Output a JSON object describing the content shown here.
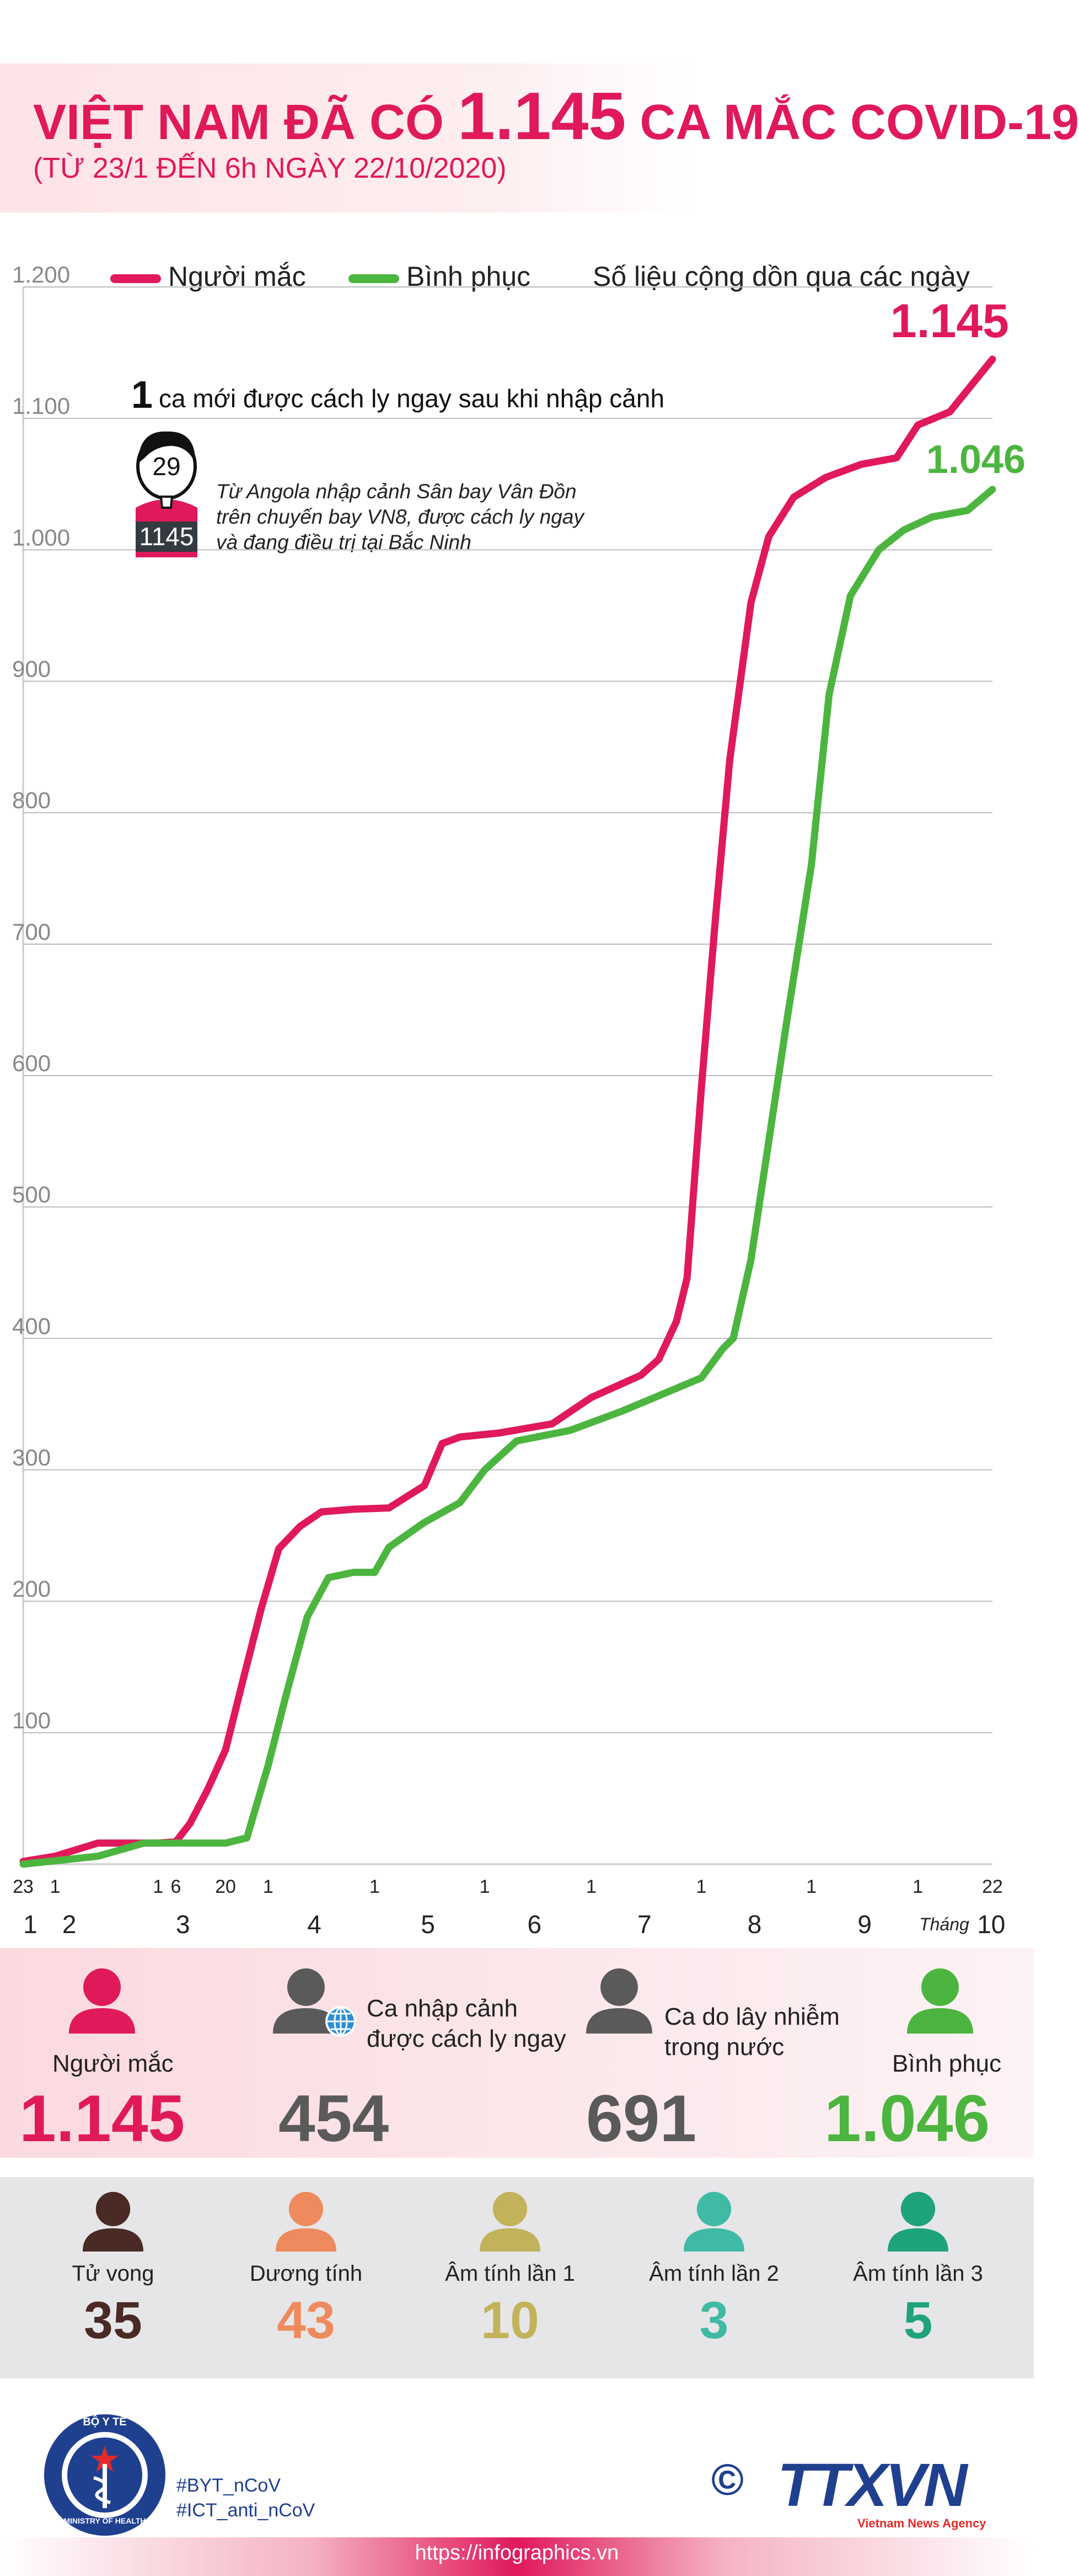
{
  "header": {
    "title_pre": "VIỆT NAM ĐÃ CÓ",
    "title_num": "1.145",
    "title_post": "CA MẮC COVID-19",
    "subtitle": "(TỪ 23/1 ĐẾN 6h NGÀY 22/10/2020)"
  },
  "legend": {
    "infected": "Người mắc",
    "recovered": "Bình phục",
    "note": "Số liệu cộng dồn qua các ngày"
  },
  "colors": {
    "infected": "#e0195b",
    "recovered": "#4cb53f",
    "grid": "#bbbbbb",
    "axis_text": "#888888",
    "dark": "#5a5a5a",
    "deceased": "#4a2a24",
    "positive": "#ef8a5e",
    "neg1": "#c2b25a",
    "neg2": "#3fbaa5",
    "neg3": "#1fa37a"
  },
  "annotation": {
    "count": "1",
    "headline": "ca mới được cách ly ngay sau khi nhập cảnh",
    "age": "29",
    "patient_id": "1145",
    "detail_1": "Từ Angola nhập cảnh Sân bay Vân Đồn",
    "detail_2": "trên chuyến bay VN8, được cách ly ngay",
    "detail_3": "và đang điều trị tại Bắc Ninh"
  },
  "chart_data": {
    "type": "line",
    "ylim": [
      0,
      1200
    ],
    "yticks": [
      "100",
      "200",
      "300",
      "400",
      "500",
      "600",
      "700",
      "800",
      "900",
      "1.000",
      "1.100",
      "1.200"
    ],
    "ytick_values": [
      100,
      200,
      300,
      400,
      500,
      600,
      700,
      800,
      900,
      1000,
      1100,
      1200
    ],
    "day_labels": [
      "23",
      "1",
      "1",
      "6",
      "20",
      "1",
      "1",
      "1",
      "1",
      "1",
      "1",
      "1",
      "22"
    ],
    "month_labels": [
      "1",
      "2",
      "3",
      "4",
      "5",
      "6",
      "7",
      "8",
      "9",
      "10"
    ],
    "month_prefix": "Tháng",
    "x_start": "2020-01-23",
    "x_end": "2020-10-22",
    "series": [
      {
        "name": "Người mắc",
        "end_label": "1.145",
        "points": [
          [
            "2020-01-23",
            2
          ],
          [
            "2020-02-01",
            6
          ],
          [
            "2020-02-13",
            16
          ],
          [
            "2020-03-01",
            16
          ],
          [
            "2020-03-06",
            17
          ],
          [
            "2020-03-10",
            31
          ],
          [
            "2020-03-15",
            57
          ],
          [
            "2020-03-20",
            87
          ],
          [
            "2020-03-25",
            141
          ],
          [
            "2020-03-30",
            194
          ],
          [
            "2020-04-04",
            240
          ],
          [
            "2020-04-10",
            257
          ],
          [
            "2020-04-16",
            268
          ],
          [
            "2020-04-25",
            270
          ],
          [
            "2020-05-05",
            271
          ],
          [
            "2020-05-15",
            288
          ],
          [
            "2020-05-20",
            320
          ],
          [
            "2020-05-25",
            325
          ],
          [
            "2020-06-05",
            328
          ],
          [
            "2020-06-20",
            335
          ],
          [
            "2020-07-01",
            355
          ],
          [
            "2020-07-15",
            372
          ],
          [
            "2020-07-20",
            384
          ],
          [
            "2020-07-25",
            413
          ],
          [
            "2020-07-28",
            446
          ],
          [
            "2020-08-01",
            590
          ],
          [
            "2020-08-05",
            720
          ],
          [
            "2020-08-09",
            840
          ],
          [
            "2020-08-15",
            960
          ],
          [
            "2020-08-20",
            1010
          ],
          [
            "2020-08-27",
            1040
          ],
          [
            "2020-09-05",
            1055
          ],
          [
            "2020-09-15",
            1065
          ],
          [
            "2020-09-25",
            1070
          ],
          [
            "2020-10-01",
            1095
          ],
          [
            "2020-10-10",
            1105
          ],
          [
            "2020-10-16",
            1125
          ],
          [
            "2020-10-22",
            1145
          ]
        ]
      },
      {
        "name": "Bình phục",
        "end_label": "1.046",
        "points": [
          [
            "2020-01-23",
            0
          ],
          [
            "2020-02-13",
            6
          ],
          [
            "2020-02-26",
            16
          ],
          [
            "2020-03-20",
            16
          ],
          [
            "2020-03-26",
            20
          ],
          [
            "2020-04-01",
            75
          ],
          [
            "2020-04-06",
            128
          ],
          [
            "2020-04-12",
            188
          ],
          [
            "2020-04-18",
            218
          ],
          [
            "2020-04-25",
            222
          ],
          [
            "2020-05-01",
            222
          ],
          [
            "2020-05-05",
            241
          ],
          [
            "2020-05-15",
            260
          ],
          [
            "2020-05-25",
            275
          ],
          [
            "2020-06-01",
            300
          ],
          [
            "2020-06-10",
            322
          ],
          [
            "2020-06-25",
            330
          ],
          [
            "2020-07-10",
            345
          ],
          [
            "2020-07-25",
            362
          ],
          [
            "2020-08-01",
            370
          ],
          [
            "2020-08-07",
            392
          ],
          [
            "2020-08-10",
            400
          ],
          [
            "2020-08-15",
            460
          ],
          [
            "2020-08-20",
            550
          ],
          [
            "2020-08-25",
            640
          ],
          [
            "2020-09-01",
            760
          ],
          [
            "2020-09-06",
            890
          ],
          [
            "2020-09-12",
            965
          ],
          [
            "2020-09-20",
            1000
          ],
          [
            "2020-09-27",
            1015
          ],
          [
            "2020-10-05",
            1025
          ],
          [
            "2020-10-15",
            1030
          ],
          [
            "2020-10-22",
            1046
          ]
        ]
      }
    ]
  },
  "summary": {
    "infected_label": "Người mắc",
    "infected_value": "1.145",
    "imported_label_1": "Ca nhập cảnh",
    "imported_label_2": "được cách ly ngay",
    "imported_value": "454",
    "domestic_label_1": "Ca do lây nhiễm",
    "domestic_label_2": "trong nước",
    "domestic_value": "691",
    "recovered_label": "Bình phục",
    "recovered_value": "1.046"
  },
  "status": {
    "deceased_label": "Tử vong",
    "deceased_value": "35",
    "positive_label": "Dương tính",
    "positive_value": "43",
    "neg1_label": "Âm tính lần 1",
    "neg1_value": "10",
    "neg2_label": "Âm tính lần 2",
    "neg2_value": "3",
    "neg3_label": "Âm tính lần 3",
    "neg3_value": "5"
  },
  "footer": {
    "ministry_top": "BỘ Y TẾ",
    "ministry_bottom": "MINISTRY OF HEALTH",
    "tag1": "#BYT_nCoV",
    "tag2": "#ICT_anti_nCoV",
    "copyright": "©",
    "agency": "TTXVN",
    "agency_sub": "Vietnam News Agency",
    "url": "https://infographics.vn"
  }
}
